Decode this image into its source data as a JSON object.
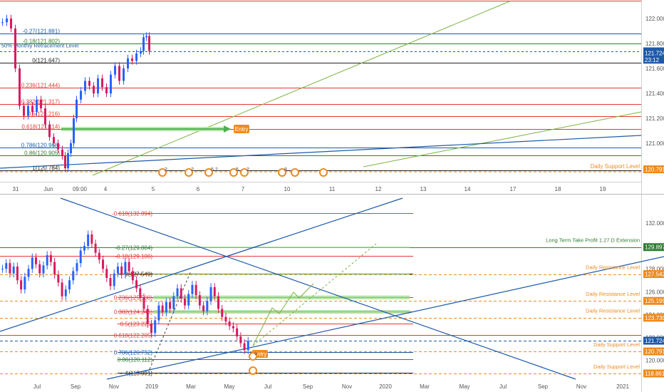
{
  "chart_data": [
    {
      "type": "candlestick",
      "name_shown": false,
      "price_axis_ticks": [
        "122.000",
        "121.800",
        "121.600",
        "121.400",
        "121.200",
        "121.000",
        "120.800"
      ],
      "time_axis_ticks": [
        "31",
        "Jun",
        "09:00",
        "4",
        "5",
        "6",
        "7",
        "10",
        "11",
        "12",
        "13",
        "14",
        "17",
        "18",
        "19"
      ],
      "ylim": [
        120.72,
        122.12
      ],
      "fib_levels": [
        {
          "label": "-0.27(121.881)",
          "price": 121.881,
          "color": "#1e5aa8"
        },
        {
          "label": "-0.18(121.802)",
          "price": 121.802,
          "color": "#2e7d32"
        },
        {
          "label": "0(121.647)",
          "price": 121.647,
          "color": "#222222"
        },
        {
          "label": "0.236(121.444)",
          "price": 121.444,
          "color": "#e53935"
        },
        {
          "label": "0.382(121.317)",
          "price": 121.317,
          "color": "#e53935"
        },
        {
          "label": "0.5(121.216)",
          "price": 121.216,
          "color": "#e53935"
        },
        {
          "label": "0.618(121.114)",
          "price": 121.114,
          "color": "#e53935"
        },
        {
          "label": "0.786(120.968)",
          "price": 120.968,
          "color": "#1e5aa8"
        },
        {
          "label": "0.86(120.905)",
          "price": 120.905,
          "color": "#2e7d32"
        },
        {
          "label": "1(120.784)",
          "price": 120.784,
          "color": "#222222"
        }
      ],
      "annotations": [
        "50% Monthly Retracement Level",
        "Entry",
        "Daily Support Level"
      ],
      "price_badges": [
        {
          "text": "121.737",
          "price": 121.737,
          "color": "#1e5aa8"
        },
        {
          "text": "121.724",
          "price": 121.724,
          "color": "#1e5aa8"
        },
        {
          "text": "23:12",
          "price": 121.67,
          "color": "#1e5aa8"
        },
        {
          "text": "120.791",
          "price": 120.791,
          "color": "#ef8a1f"
        }
      ],
      "event_markers": [
        "2",
        "2",
        "5 2",
        "5",
        "2",
        "8"
      ]
    },
    {
      "type": "candlestick",
      "price_axis_ticks": [
        "132.000",
        "130.000",
        "128.000",
        "126.000",
        "124.000",
        "122.000",
        "120.000"
      ],
      "time_axis_ticks": [
        "Jul",
        "Sep",
        "Nov",
        "2019",
        "Mar",
        "May",
        "Jul",
        "Sep",
        "Nov",
        "2020",
        "Mar",
        "May",
        "Jul",
        "Sep",
        "Nov",
        "2021"
      ],
      "ylim": [
        118.3,
        134.3
      ],
      "fib_levels": [
        {
          "label": "-0.618(132.894)",
          "price": 132.894,
          "color": "#e53935"
        },
        {
          "label": "-0.27(129.884)",
          "price": 129.884,
          "color": "#2e7d32"
        },
        {
          "label": "-0.18(129.106)",
          "price": 129.106,
          "color": "#e53935"
        },
        {
          "label": "0(127.549)",
          "price": 127.549,
          "color": "#222222"
        },
        {
          "label": "0.236(125.508)",
          "price": 125.508,
          "color": "#e53935"
        },
        {
          "label": "0.382(124.246)",
          "price": 124.246,
          "color": "#e53935"
        },
        {
          "label": "0.5(123.225)",
          "price": 123.225,
          "color": "#e53935"
        },
        {
          "label": "0.618(122.205)",
          "price": 122.205,
          "color": "#e53935"
        },
        {
          "label": "0.786(120.752)",
          "price": 120.752,
          "color": "#1e5aa8"
        },
        {
          "label": "0.86(120.112)",
          "price": 120.112,
          "color": "#2e7d32"
        },
        {
          "label": "1(118.901)",
          "price": 118.901,
          "color": "#222222"
        }
      ],
      "annotations": [
        "Long Term Take Profit 1.27 D Extension",
        "Daily Resistance Level",
        "Daily Resistance Level",
        "Daily Resistance Level",
        "Daily Support Level",
        "Daily Support Level",
        "Entry"
      ],
      "price_badges": [
        {
          "text": "129.897",
          "price": 129.897,
          "color": "#2e7d32"
        },
        {
          "text": "127.542",
          "price": 127.542,
          "color": "#ef8a1f"
        },
        {
          "text": "125.199",
          "price": 125.199,
          "color": "#ef8a1f"
        },
        {
          "text": "123.730",
          "price": 123.73,
          "color": "#ef8a1f"
        },
        {
          "text": "121.724",
          "price": 121.724,
          "color": "#1e5aa8"
        },
        {
          "text": "120.791",
          "price": 120.791,
          "color": "#ef8a1f"
        },
        {
          "text": "118.861",
          "price": 118.861,
          "color": "#ef8a1f"
        }
      ],
      "event_markers": [
        "5"
      ]
    }
  ],
  "colors": {
    "up": "#2962ff",
    "down": "#d81b60",
    "fib_red": "#e53935",
    "fib_blue": "#1e5aa8",
    "fib_green": "#2e7d32",
    "accent_orange": "#ef8a1f",
    "axis_text": "#555555"
  }
}
